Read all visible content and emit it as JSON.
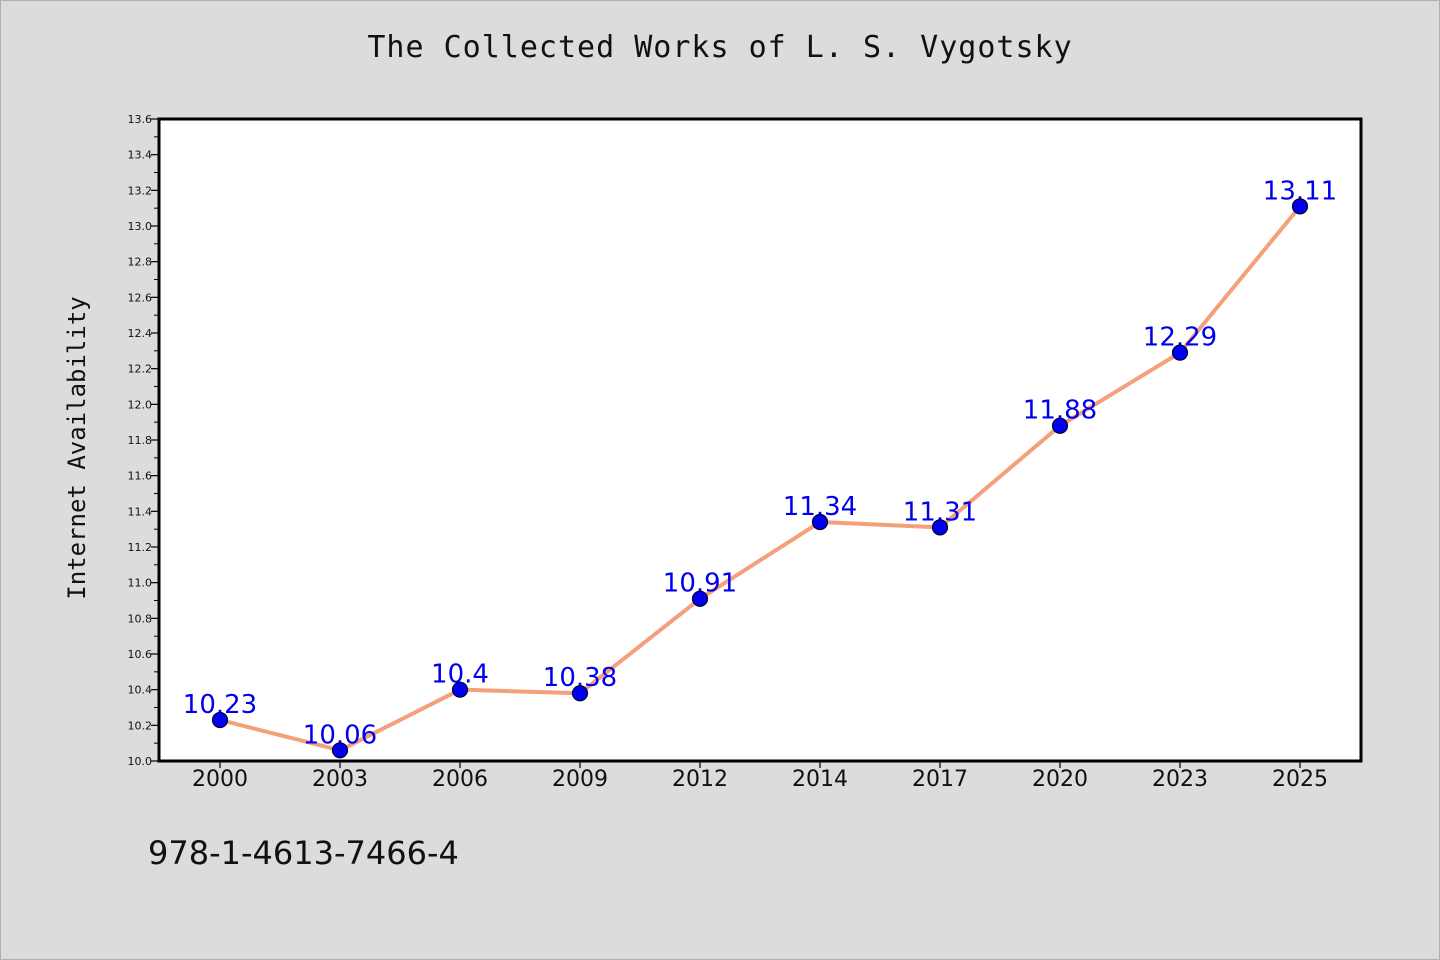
{
  "title": "The Collected Works of L. S. Vygotsky",
  "isbn": "978-1-4613-7466-4",
  "colors": {
    "background": "#dcdcdc",
    "plot_background": "#ffffff",
    "line": "#f4a07a",
    "marker": "#0000ee",
    "data_label": "#0000ee"
  },
  "chart_data": {
    "type": "line",
    "title": "The Collected Works of L. S. Vygotsky",
    "xlabel": "",
    "ylabel": "Internet Availability",
    "x": [
      "2000",
      "2003",
      "2006",
      "2009",
      "2012",
      "2014",
      "2017",
      "2020",
      "2023",
      "2025"
    ],
    "series": [
      {
        "values": [
          10.23,
          10.06,
          10.4,
          10.38,
          10.91,
          11.34,
          11.31,
          11.88,
          12.29,
          13.11
        ],
        "labels": [
          "10.23",
          "10.06",
          "10.4",
          "10.38",
          "10.91",
          "11.34",
          "11.31",
          "11.88",
          "12.29",
          "13.11"
        ]
      }
    ],
    "ylim": [
      10.0,
      13.6
    ],
    "yticks": [
      "10.0",
      "10.2",
      "10.4",
      "10.6",
      "10.8",
      "11.0",
      "11.2",
      "11.4",
      "11.6",
      "11.8",
      "12.0",
      "12.2",
      "12.4",
      "12.6",
      "12.8",
      "13.0",
      "13.2",
      "13.4",
      "13.6"
    ],
    "grid": false,
    "legend": "none"
  }
}
